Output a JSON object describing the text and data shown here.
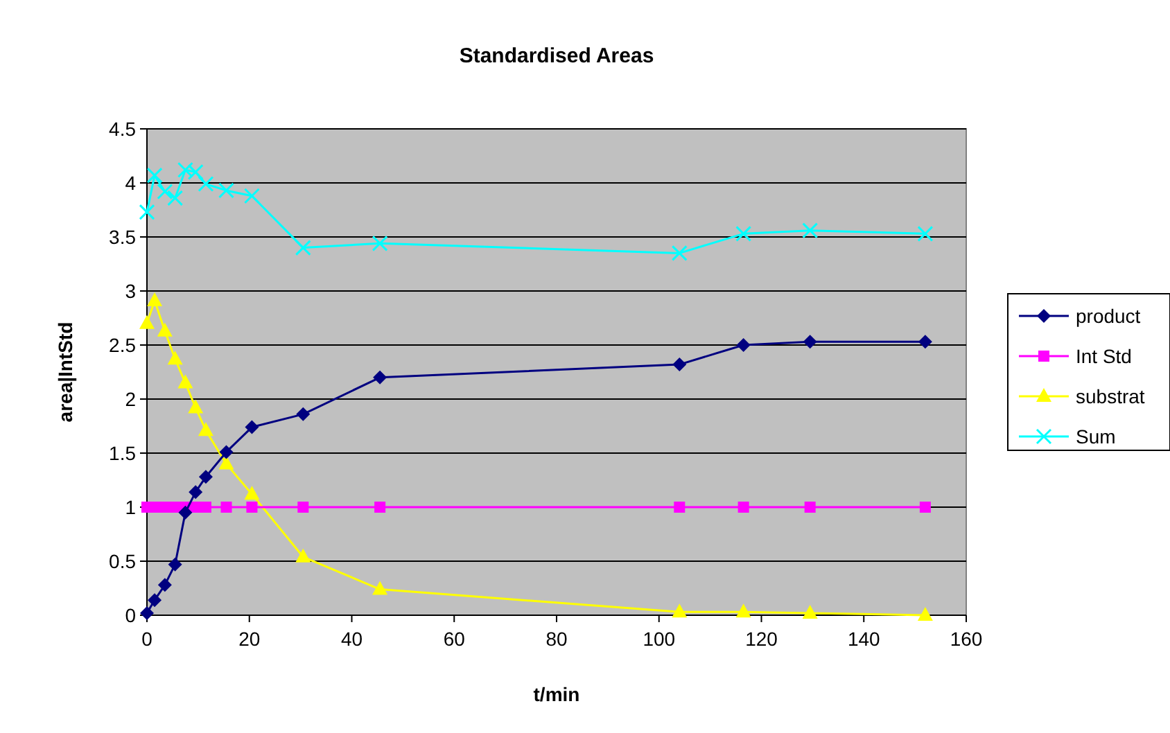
{
  "chart_data": {
    "type": "line",
    "title": "Standardised Areas",
    "xlabel": "t/min",
    "ylabel": "area|IntStd",
    "xlim": [
      0,
      160
    ],
    "xticks": [
      0,
      20,
      40,
      60,
      80,
      100,
      120,
      140,
      160
    ],
    "ylim": [
      0,
      4.5
    ],
    "yticks": [
      0,
      0.5,
      1,
      1.5,
      2,
      2.5,
      3,
      3.5,
      4,
      4.5
    ],
    "grid": "y",
    "legend": "right",
    "x": [
      0,
      1.5,
      3.5,
      5.5,
      7.5,
      9.5,
      11.5,
      15.5,
      20.5,
      30.5,
      45.5,
      104,
      116.5,
      129.5,
      152
    ],
    "series": [
      {
        "name": "product",
        "color": "#000080",
        "marker": "diamond",
        "values": [
          0.02,
          0.14,
          0.28,
          0.47,
          0.95,
          1.14,
          1.28,
          1.51,
          1.74,
          1.86,
          2.2,
          2.32,
          2.5,
          2.53,
          2.53
        ]
      },
      {
        "name": "Int Std",
        "color": "#ff00ff",
        "marker": "square",
        "values": [
          1,
          1,
          1,
          1,
          1,
          1,
          1,
          1,
          1,
          1,
          1,
          1,
          1,
          1,
          1
        ]
      },
      {
        "name": "substrat",
        "color": "#ffff00",
        "marker": "triangle",
        "values": [
          2.7,
          2.91,
          2.63,
          2.37,
          2.15,
          1.92,
          1.71,
          1.4,
          1.12,
          0.54,
          0.24,
          0.03,
          0.03,
          0.02,
          0
        ]
      },
      {
        "name": "Sum",
        "color": "#00ffff",
        "marker": "cross",
        "values": [
          3.73,
          4.07,
          3.92,
          3.86,
          4.12,
          4.1,
          3.99,
          3.93,
          3.88,
          3.4,
          3.44,
          3.35,
          3.53,
          3.56,
          3.53
        ]
      }
    ]
  }
}
